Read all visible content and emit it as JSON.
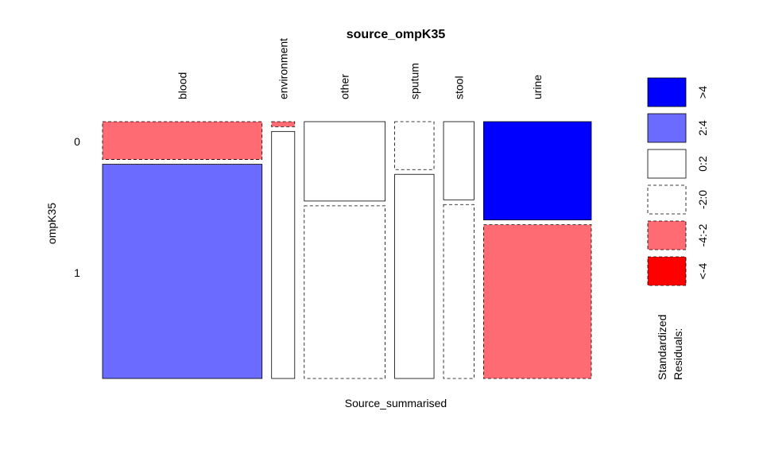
{
  "chart_data": {
    "type": "mosaic",
    "title": "source_ompK35",
    "xlabel": "Source_summarised",
    "ylabel": "ompK35",
    "row_levels": [
      "0",
      "1"
    ],
    "column_levels": [
      "blood",
      "environment",
      "other",
      "sputum",
      "stool",
      "urine"
    ],
    "column_proportions": [
      0.345,
      0.05,
      0.175,
      0.085,
      0.066,
      0.233
    ],
    "cells": [
      {
        "column": "blood",
        "row": "0",
        "fraction": 0.15,
        "residual_class": "-4:-2"
      },
      {
        "column": "blood",
        "row": "1",
        "fraction": 0.85,
        "residual_class": "2:4"
      },
      {
        "column": "environment",
        "row": "0",
        "fraction": 0.02,
        "residual_class": "-4:-2"
      },
      {
        "column": "environment",
        "row": "1",
        "fraction": 0.98,
        "residual_class": "0:2"
      },
      {
        "column": "other",
        "row": "0",
        "fraction": 0.315,
        "residual_class": "0:2"
      },
      {
        "column": "other",
        "row": "1",
        "fraction": 0.685,
        "residual_class": "-2:0"
      },
      {
        "column": "sputum",
        "row": "0",
        "fraction": 0.19,
        "residual_class": "-2:0"
      },
      {
        "column": "sputum",
        "row": "1",
        "fraction": 0.81,
        "residual_class": "0:2"
      },
      {
        "column": "stool",
        "row": "0",
        "fraction": 0.31,
        "residual_class": "0:2"
      },
      {
        "column": "stool",
        "row": "1",
        "fraction": 0.69,
        "residual_class": "-2:0"
      },
      {
        "column": "urine",
        "row": "0",
        "fraction": 0.39,
        "residual_class": ">4"
      },
      {
        "column": "urine",
        "row": "1",
        "fraction": 0.61,
        "residual_class": "-4:-2"
      }
    ],
    "legend": {
      "title_line1": "Standardized",
      "title_line2": "Residuals:",
      "entries": [
        {
          "label": ">4",
          "color": "#0000ff",
          "dashed": false
        },
        {
          "label": "2:4",
          "color": "#6b6bff",
          "dashed": false
        },
        {
          "label": "0:2",
          "color": "#ffffff",
          "dashed": false
        },
        {
          "label": "-2:0",
          "color": "#ffffff",
          "dashed": true
        },
        {
          "label": "-4:-2",
          "color": "#ff6b72",
          "dashed": true
        },
        {
          "label": "<-4",
          "color": "#ff0000",
          "dashed": true
        }
      ],
      "placement": "right"
    }
  }
}
